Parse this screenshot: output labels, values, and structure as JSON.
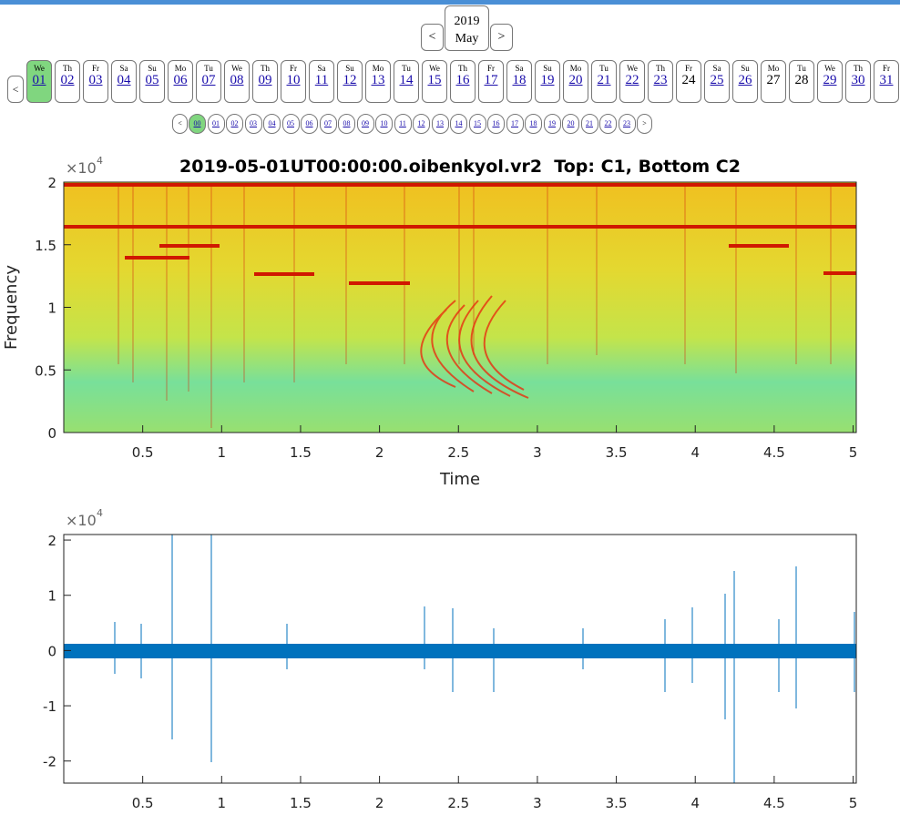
{
  "nav": {
    "year": "2019",
    "month": "May",
    "prev": "<",
    "next": ">",
    "day_prev": "<",
    "days": [
      {
        "weekday": "We",
        "day": "01",
        "link": true
      },
      {
        "weekday": "Th",
        "day": "02",
        "link": true
      },
      {
        "weekday": "Fr",
        "day": "03",
        "link": true
      },
      {
        "weekday": "Sa",
        "day": "04",
        "link": true
      },
      {
        "weekday": "Su",
        "day": "05",
        "link": true
      },
      {
        "weekday": "Mo",
        "day": "06",
        "link": true
      },
      {
        "weekday": "Tu",
        "day": "07",
        "link": true
      },
      {
        "weekday": "We",
        "day": "08",
        "link": true
      },
      {
        "weekday": "Th",
        "day": "09",
        "link": true
      },
      {
        "weekday": "Fr",
        "day": "10",
        "link": true
      },
      {
        "weekday": "Sa",
        "day": "11",
        "link": true
      },
      {
        "weekday": "Su",
        "day": "12",
        "link": true
      },
      {
        "weekday": "Mo",
        "day": "13",
        "link": true
      },
      {
        "weekday": "Tu",
        "day": "14",
        "link": true
      },
      {
        "weekday": "We",
        "day": "15",
        "link": true
      },
      {
        "weekday": "Th",
        "day": "16",
        "link": true
      },
      {
        "weekday": "Fr",
        "day": "17",
        "link": true
      },
      {
        "weekday": "Sa",
        "day": "18",
        "link": true
      },
      {
        "weekday": "Su",
        "day": "19",
        "link": true
      },
      {
        "weekday": "Mo",
        "day": "20",
        "link": true
      },
      {
        "weekday": "Tu",
        "day": "21",
        "link": true
      },
      {
        "weekday": "We",
        "day": "22",
        "link": true
      },
      {
        "weekday": "Th",
        "day": "23",
        "link": true
      },
      {
        "weekday": "Fr",
        "day": "24",
        "link": false
      },
      {
        "weekday": "Sa",
        "day": "25",
        "link": true
      },
      {
        "weekday": "Su",
        "day": "26",
        "link": true
      },
      {
        "weekday": "Mo",
        "day": "27",
        "link": false
      },
      {
        "weekday": "Tu",
        "day": "28",
        "link": false
      },
      {
        "weekday": "We",
        "day": "29",
        "link": true
      },
      {
        "weekday": "Th",
        "day": "30",
        "link": true
      },
      {
        "weekday": "Fr",
        "day": "31",
        "link": true
      }
    ],
    "selected_day": 0,
    "hour_prev": "<",
    "hour_next": ">",
    "hours": [
      "00",
      "01",
      "02",
      "03",
      "04",
      "05",
      "06",
      "07",
      "08",
      "09",
      "10",
      "11",
      "12",
      "13",
      "14",
      "15",
      "16",
      "17",
      "18",
      "19",
      "20",
      "21",
      "22",
      "23"
    ],
    "selected_hour": 0
  },
  "spectrogram": {
    "title": "2019-05-01UT00:00:00.oibenkyol.vr2  Top: C1, Bottom C2",
    "xlabel": "Time",
    "ylabel": "Frequency",
    "multiplier": "×10",
    "exponent": 4,
    "xlim": [
      0,
      5.02
    ],
    "ylim": [
      0,
      2
    ],
    "xticks": [
      0.5,
      1,
      1.5,
      2,
      2.5,
      3,
      3.5,
      4,
      4.5,
      5
    ],
    "yticks": [
      0,
      0.5,
      1,
      1.5,
      2
    ]
  },
  "waveform": {
    "multiplier": "×10",
    "exponent": 4,
    "xlim": [
      0,
      5.02
    ],
    "ylim": [
      -2.4,
      2.1
    ],
    "xticks": [
      0.5,
      1,
      1.5,
      2,
      2.5,
      3,
      3.5,
      4,
      4.5,
      5
    ],
    "yticks": [
      -2,
      -1,
      0,
      1,
      2
    ]
  }
}
